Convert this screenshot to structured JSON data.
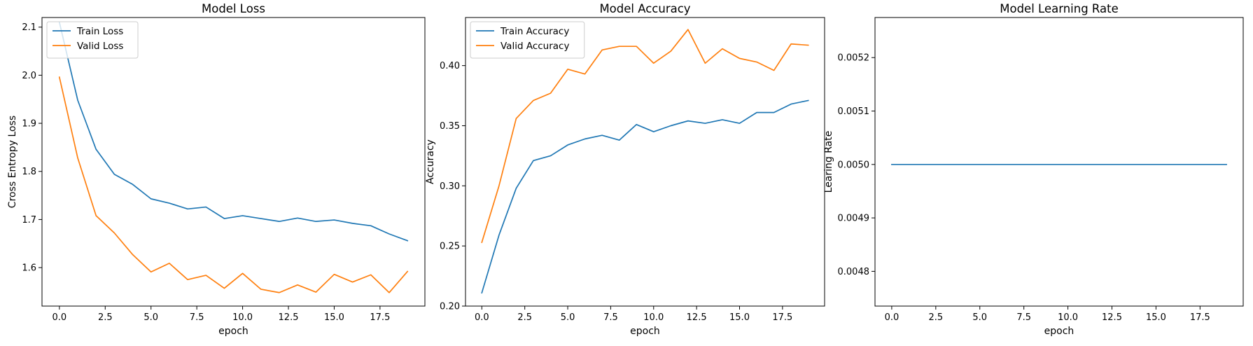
{
  "chart_data": [
    {
      "type": "line",
      "title": "Model Loss",
      "xlabel": "epoch",
      "ylabel": "Cross Entropy Loss",
      "x": [
        0,
        1,
        2,
        3,
        4,
        5,
        6,
        7,
        8,
        9,
        10,
        11,
        12,
        13,
        14,
        15,
        16,
        17,
        18,
        19
      ],
      "xlim": [
        -0.95,
        19.95
      ],
      "ylim": [
        1.52,
        2.12
      ],
      "xticks": [
        0,
        2.5,
        5,
        7.5,
        10,
        12.5,
        15,
        17.5
      ],
      "xtick_labels": [
        "0.0",
        "2.5",
        "5.0",
        "7.5",
        "10.0",
        "12.5",
        "15.0",
        "17.5"
      ],
      "yticks": [
        1.6,
        1.7,
        1.8,
        1.9,
        2.0,
        2.1
      ],
      "ytick_labels": [
        "1.6",
        "1.7",
        "1.8",
        "1.9",
        "2.0",
        "2.1"
      ],
      "grid": false,
      "legend": "top-left",
      "series": [
        {
          "name": "Train Loss",
          "color": "#1f77b4",
          "values": [
            2.11,
            1.948,
            1.846,
            1.794,
            1.773,
            1.743,
            1.734,
            1.722,
            1.726,
            1.702,
            1.708,
            1.702,
            1.696,
            1.703,
            1.696,
            1.699,
            1.692,
            1.687,
            1.67,
            1.656
          ]
        },
        {
          "name": "Valid Loss",
          "color": "#ff7f0e",
          "values": [
            1.996,
            1.828,
            1.708,
            1.672,
            1.627,
            1.591,
            1.609,
            1.575,
            1.584,
            1.557,
            1.588,
            1.555,
            1.548,
            1.564,
            1.549,
            1.586,
            1.57,
            1.585,
            1.548,
            1.592
          ]
        }
      ]
    },
    {
      "type": "line",
      "title": "Model Accuracy",
      "xlabel": "epoch",
      "ylabel": "Accuracy",
      "x": [
        0,
        1,
        2,
        3,
        4,
        5,
        6,
        7,
        8,
        9,
        10,
        11,
        12,
        13,
        14,
        15,
        16,
        17,
        18,
        19
      ],
      "xlim": [
        -0.95,
        19.95
      ],
      "ylim": [
        0.2,
        0.44
      ],
      "xticks": [
        0,
        2.5,
        5,
        7.5,
        10,
        12.5,
        15,
        17.5
      ],
      "xtick_labels": [
        "0.0",
        "2.5",
        "5.0",
        "7.5",
        "10.0",
        "12.5",
        "15.0",
        "17.5"
      ],
      "yticks": [
        0.2,
        0.25,
        0.3,
        0.35,
        0.4
      ],
      "ytick_labels": [
        "0.20",
        "0.25",
        "0.30",
        "0.35",
        "0.40"
      ],
      "grid": false,
      "legend": "top-left",
      "series": [
        {
          "name": "Train Accuracy",
          "color": "#1f77b4",
          "values": [
            0.211,
            0.259,
            0.298,
            0.321,
            0.325,
            0.334,
            0.339,
            0.342,
            0.338,
            0.351,
            0.345,
            0.35,
            0.354,
            0.352,
            0.355,
            0.352,
            0.361,
            0.361,
            0.368,
            0.371
          ]
        },
        {
          "name": "Valid Accuracy",
          "color": "#ff7f0e",
          "values": [
            0.253,
            0.3,
            0.356,
            0.371,
            0.377,
            0.397,
            0.393,
            0.413,
            0.416,
            0.416,
            0.402,
            0.412,
            0.43,
            0.402,
            0.414,
            0.406,
            0.403,
            0.396,
            0.418,
            0.417
          ]
        }
      ]
    },
    {
      "type": "line",
      "title": "Model Learning Rate",
      "xlabel": "epoch",
      "ylabel": "Learing Rate",
      "x": [
        0,
        1,
        2,
        3,
        4,
        5,
        6,
        7,
        8,
        9,
        10,
        11,
        12,
        13,
        14,
        15,
        16,
        17,
        18,
        19
      ],
      "xlim": [
        -0.95,
        19.95
      ],
      "ylim": [
        0.004735,
        0.005275
      ],
      "xticks": [
        0,
        2.5,
        5,
        7.5,
        10,
        12.5,
        15,
        17.5
      ],
      "xtick_labels": [
        "0.0",
        "2.5",
        "5.0",
        "7.5",
        "10.0",
        "12.5",
        "15.0",
        "17.5"
      ],
      "yticks": [
        0.0048,
        0.0049,
        0.005,
        0.0051,
        0.0052
      ],
      "ytick_labels": [
        "0.0048",
        "0.0049",
        "0.0050",
        "0.0051",
        "0.0052"
      ],
      "grid": false,
      "series": [
        {
          "color": "#1f77b4",
          "values": [
            0.005,
            0.005,
            0.005,
            0.005,
            0.005,
            0.005,
            0.005,
            0.005,
            0.005,
            0.005,
            0.005,
            0.005,
            0.005,
            0.005,
            0.005,
            0.005,
            0.005,
            0.005,
            0.005,
            0.005
          ]
        }
      ]
    }
  ]
}
